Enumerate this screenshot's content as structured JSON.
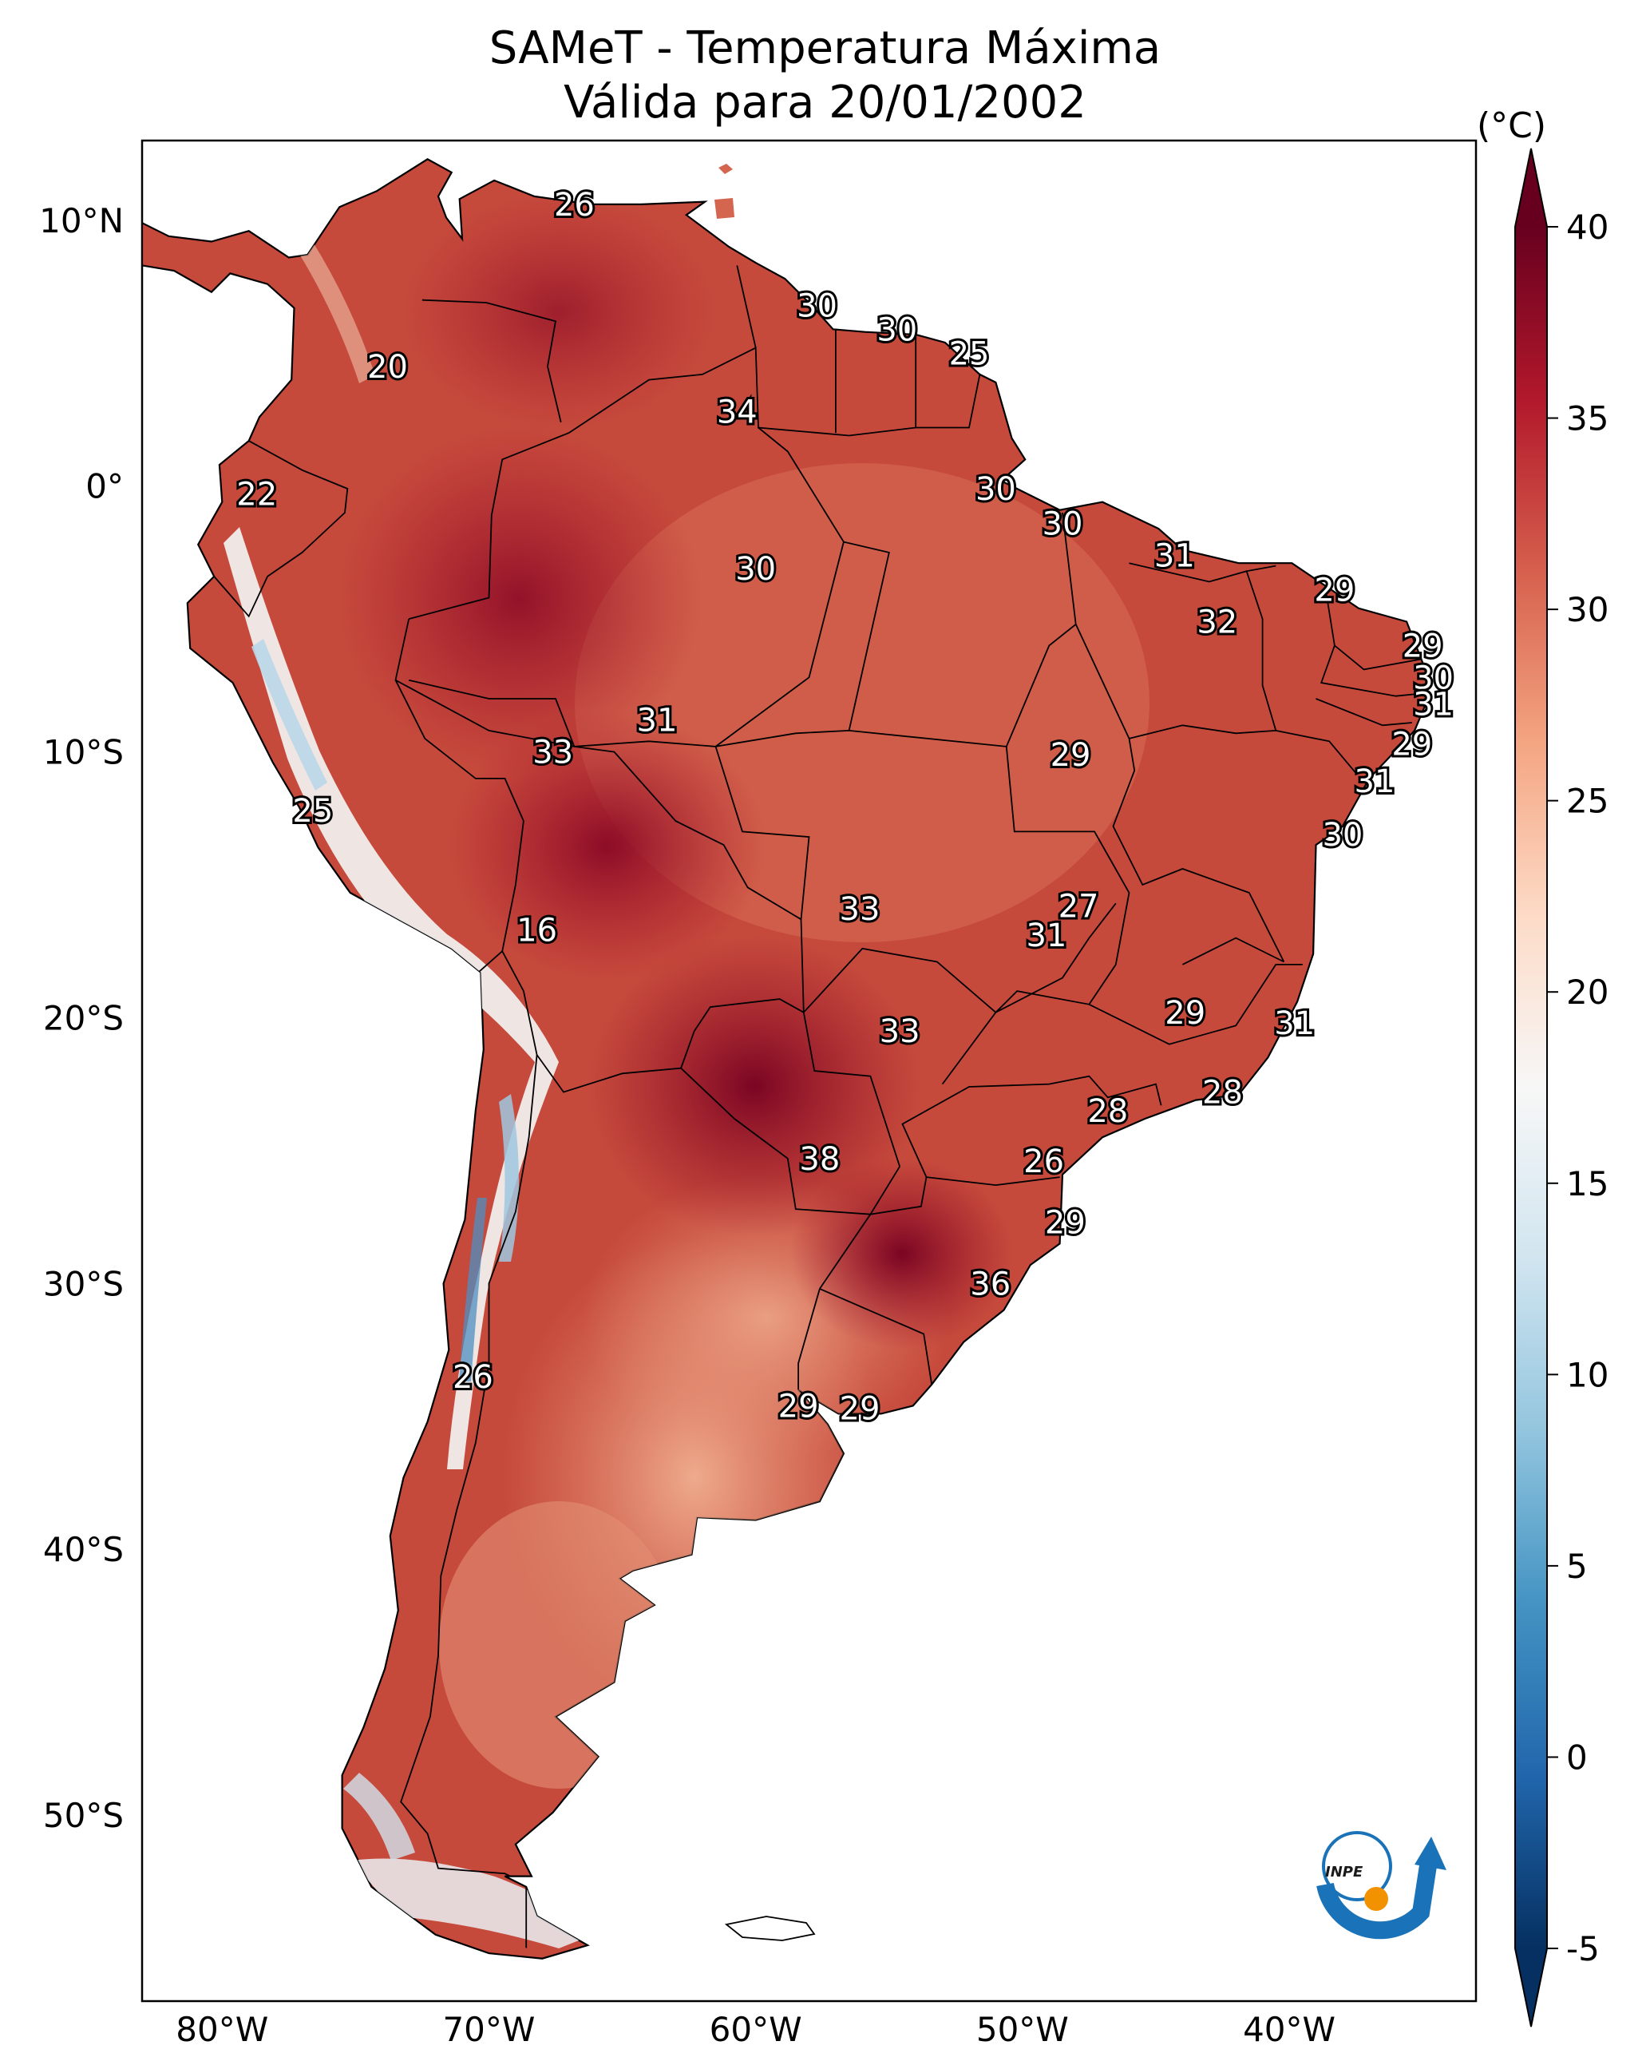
{
  "title": {
    "line1": "SAMeT - Temperatura Máxima",
    "line2": "Válida para 20/01/2002"
  },
  "map": {
    "lat_ticks": [
      "10°N",
      "0°",
      "10°S",
      "20°S",
      "30°S",
      "40°S",
      "50°S"
    ],
    "lon_ticks": [
      "80°W",
      "70°W",
      "60°W",
      "50°W",
      "40°W"
    ],
    "extent": {
      "lon": [
        -83,
        -33
      ],
      "lat": [
        -57,
        13
      ]
    }
  },
  "colorbar": {
    "unit": "(°C)",
    "ticks": [
      "40",
      "35",
      "30",
      "25",
      "20",
      "15",
      "10",
      "5",
      "0",
      "-5"
    ],
    "range": [
      -5,
      40
    ],
    "colors": [
      "#053061",
      "#2166ac",
      "#4393c3",
      "#92c5de",
      "#d1e5f0",
      "#f7f7f7",
      "#fddbc7",
      "#f4a582",
      "#d6604d",
      "#b2182b",
      "#67001f"
    ]
  },
  "labels": [
    {
      "text": "26",
      "lon": -66.8,
      "lat": 10.6
    },
    {
      "text": "20",
      "lon": -73.8,
      "lat": 4.5
    },
    {
      "text": "30",
      "lon": -57.7,
      "lat": 6.8
    },
    {
      "text": "30",
      "lon": -54.7,
      "lat": 5.9
    },
    {
      "text": "25",
      "lon": -52.0,
      "lat": 5.0
    },
    {
      "text": "34",
      "lon": -60.7,
      "lat": 2.8
    },
    {
      "text": "22",
      "lon": -78.7,
      "lat": -0.3
    },
    {
      "text": "30",
      "lon": -51.0,
      "lat": -0.1
    },
    {
      "text": "30",
      "lon": -48.5,
      "lat": -1.4
    },
    {
      "text": "30",
      "lon": -60.0,
      "lat": -3.1
    },
    {
      "text": "31",
      "lon": -44.3,
      "lat": -2.6
    },
    {
      "text": "29",
      "lon": -38.3,
      "lat": -3.9
    },
    {
      "text": "32",
      "lon": -42.7,
      "lat": -5.1
    },
    {
      "text": "29",
      "lon": -35.0,
      "lat": -6.0
    },
    {
      "text": "30",
      "lon": -34.6,
      "lat": -7.2
    },
    {
      "text": "31",
      "lon": -34.6,
      "lat": -8.2
    },
    {
      "text": "31",
      "lon": -63.7,
      "lat": -8.8
    },
    {
      "text": "33",
      "lon": -67.6,
      "lat": -10.0
    },
    {
      "text": "29",
      "lon": -48.2,
      "lat": -10.1
    },
    {
      "text": "29",
      "lon": -35.4,
      "lat": -9.7
    },
    {
      "text": "31",
      "lon": -36.8,
      "lat": -11.1
    },
    {
      "text": "25",
      "lon": -76.6,
      "lat": -12.2
    },
    {
      "text": "30",
      "lon": -38.0,
      "lat": -13.1
    },
    {
      "text": "27",
      "lon": -47.9,
      "lat": -15.8
    },
    {
      "text": "33",
      "lon": -56.1,
      "lat": -15.9
    },
    {
      "text": "31",
      "lon": -49.1,
      "lat": -16.9
    },
    {
      "text": "16",
      "lon": -68.2,
      "lat": -16.7
    },
    {
      "text": "29",
      "lon": -43.9,
      "lat": -19.8
    },
    {
      "text": "33",
      "lon": -54.6,
      "lat": -20.5
    },
    {
      "text": "31",
      "lon": -39.8,
      "lat": -20.2
    },
    {
      "text": "28",
      "lon": -42.5,
      "lat": -22.8
    },
    {
      "text": "28",
      "lon": -46.8,
      "lat": -23.5
    },
    {
      "text": "38",
      "lon": -57.6,
      "lat": -25.3
    },
    {
      "text": "26",
      "lon": -49.2,
      "lat": -25.4
    },
    {
      "text": "29",
      "lon": -48.4,
      "lat": -27.7
    },
    {
      "text": "36",
      "lon": -51.2,
      "lat": -30.0
    },
    {
      "text": "26",
      "lon": -70.6,
      "lat": -33.5
    },
    {
      "text": "29",
      "lon": -58.4,
      "lat": -34.6
    },
    {
      "text": "29",
      "lon": -56.1,
      "lat": -34.7
    }
  ],
  "logo": {
    "text": "INPE",
    "arc_color": "#1a73b8",
    "dot_color": "#f39200"
  }
}
